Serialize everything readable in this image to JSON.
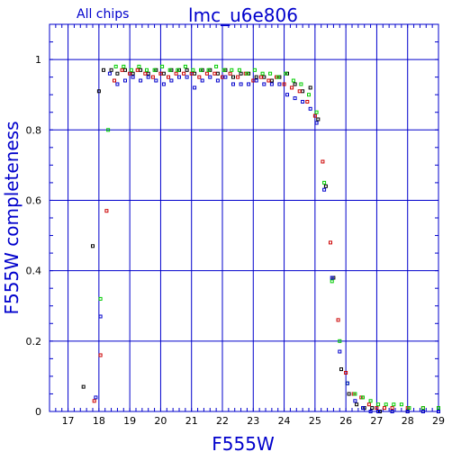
{
  "chart_data": {
    "type": "scatter",
    "title": "lmc_u6e806",
    "subtitle": "All chips",
    "xlabel": "F555W",
    "ylabel": "F555W completeness",
    "xlim": [
      16.4,
      29.0
    ],
    "ylim": [
      0,
      1.1
    ],
    "xticks": [
      17,
      18,
      19,
      20,
      21,
      22,
      23,
      24,
      25,
      26,
      27,
      28,
      29
    ],
    "yticks": [
      0,
      0.2,
      0.4,
      0.6,
      0.8,
      1
    ],
    "ytick_labels": [
      "0",
      "0.2",
      "0.4",
      "0.6",
      "0.8",
      "1"
    ],
    "grid": true,
    "marker": "open-square",
    "series": [
      {
        "color": "#000000",
        "points": [
          [
            17.5,
            0.07
          ],
          [
            17.8,
            0.47
          ],
          [
            18.0,
            0.91
          ],
          [
            18.15,
            0.97
          ],
          [
            18.4,
            0.97
          ],
          [
            18.6,
            0.96
          ],
          [
            18.85,
            0.97
          ],
          [
            19.1,
            0.96
          ],
          [
            19.35,
            0.97
          ],
          [
            19.6,
            0.96
          ],
          [
            19.85,
            0.97
          ],
          [
            20.1,
            0.96
          ],
          [
            20.35,
            0.97
          ],
          [
            20.6,
            0.97
          ],
          [
            20.85,
            0.97
          ],
          [
            21.1,
            0.96
          ],
          [
            21.35,
            0.97
          ],
          [
            21.6,
            0.97
          ],
          [
            21.85,
            0.96
          ],
          [
            22.1,
            0.97
          ],
          [
            22.35,
            0.95
          ],
          [
            22.6,
            0.96
          ],
          [
            22.85,
            0.96
          ],
          [
            23.1,
            0.95
          ],
          [
            23.35,
            0.95
          ],
          [
            23.6,
            0.94
          ],
          [
            23.85,
            0.95
          ],
          [
            24.1,
            0.96
          ],
          [
            24.35,
            0.93
          ],
          [
            24.6,
            0.91
          ],
          [
            24.85,
            0.92
          ],
          [
            25.1,
            0.83
          ],
          [
            25.35,
            0.64
          ],
          [
            25.6,
            0.38
          ],
          [
            25.85,
            0.12
          ],
          [
            26.1,
            0.05
          ],
          [
            26.35,
            0.02
          ],
          [
            26.6,
            0.01
          ],
          [
            26.85,
            0.01
          ],
          [
            27.1,
            0.0
          ],
          [
            27.5,
            0.0
          ],
          [
            28.0,
            0.0
          ],
          [
            28.5,
            0.0
          ],
          [
            29.0,
            0.0
          ]
        ]
      },
      {
        "color": "#cc0000",
        "points": [
          [
            17.85,
            0.03
          ],
          [
            18.05,
            0.16
          ],
          [
            18.25,
            0.57
          ],
          [
            18.5,
            0.94
          ],
          [
            18.75,
            0.97
          ],
          [
            19.0,
            0.96
          ],
          [
            19.25,
            0.97
          ],
          [
            19.5,
            0.96
          ],
          [
            19.75,
            0.95
          ],
          [
            20.0,
            0.96
          ],
          [
            20.25,
            0.95
          ],
          [
            20.5,
            0.96
          ],
          [
            20.75,
            0.96
          ],
          [
            21.0,
            0.96
          ],
          [
            21.25,
            0.95
          ],
          [
            21.5,
            0.96
          ],
          [
            21.75,
            0.96
          ],
          [
            22.0,
            0.95
          ],
          [
            22.25,
            0.96
          ],
          [
            22.5,
            0.95
          ],
          [
            22.75,
            0.96
          ],
          [
            23.0,
            0.94
          ],
          [
            23.25,
            0.95
          ],
          [
            23.5,
            0.94
          ],
          [
            23.75,
            0.95
          ],
          [
            24.0,
            0.93
          ],
          [
            24.25,
            0.92
          ],
          [
            24.5,
            0.91
          ],
          [
            24.75,
            0.88
          ],
          [
            25.0,
            0.84
          ],
          [
            25.25,
            0.71
          ],
          [
            25.5,
            0.48
          ],
          [
            25.75,
            0.26
          ],
          [
            26.0,
            0.11
          ],
          [
            26.25,
            0.05
          ],
          [
            26.5,
            0.04
          ],
          [
            26.75,
            0.02
          ],
          [
            27.0,
            0.01
          ],
          [
            27.25,
            0.01
          ],
          [
            27.5,
            0.01
          ],
          [
            28.0,
            0.01
          ],
          [
            28.5,
            0.01
          ],
          [
            29.0,
            0.01
          ]
        ]
      },
      {
        "color": "#00cc00",
        "points": [
          [
            18.05,
            0.32
          ],
          [
            18.3,
            0.8
          ],
          [
            18.55,
            0.98
          ],
          [
            18.8,
            0.98
          ],
          [
            19.05,
            0.97
          ],
          [
            19.3,
            0.98
          ],
          [
            19.55,
            0.97
          ],
          [
            19.8,
            0.97
          ],
          [
            20.05,
            0.98
          ],
          [
            20.3,
            0.97
          ],
          [
            20.55,
            0.97
          ],
          [
            20.8,
            0.98
          ],
          [
            21.05,
            0.97
          ],
          [
            21.3,
            0.97
          ],
          [
            21.55,
            0.97
          ],
          [
            21.8,
            0.98
          ],
          [
            22.05,
            0.97
          ],
          [
            22.3,
            0.97
          ],
          [
            22.55,
            0.97
          ],
          [
            22.8,
            0.96
          ],
          [
            23.05,
            0.97
          ],
          [
            23.3,
            0.96
          ],
          [
            23.55,
            0.96
          ],
          [
            23.8,
            0.95
          ],
          [
            24.05,
            0.96
          ],
          [
            24.3,
            0.94
          ],
          [
            24.55,
            0.93
          ],
          [
            24.8,
            0.9
          ],
          [
            25.05,
            0.85
          ],
          [
            25.3,
            0.65
          ],
          [
            25.55,
            0.37
          ],
          [
            25.8,
            0.2
          ],
          [
            26.05,
            0.08
          ],
          [
            26.3,
            0.05
          ],
          [
            26.55,
            0.04
          ],
          [
            26.8,
            0.03
          ],
          [
            27.05,
            0.02
          ],
          [
            27.3,
            0.02
          ],
          [
            27.55,
            0.02
          ],
          [
            27.8,
            0.02
          ],
          [
            28.05,
            0.01
          ],
          [
            28.5,
            0.01
          ],
          [
            29.0,
            0.01
          ]
        ]
      },
      {
        "color": "#0000cc",
        "points": [
          [
            17.9,
            0.04
          ],
          [
            18.05,
            0.27
          ],
          [
            18.35,
            0.96
          ],
          [
            18.6,
            0.93
          ],
          [
            18.85,
            0.94
          ],
          [
            19.1,
            0.95
          ],
          [
            19.35,
            0.94
          ],
          [
            19.6,
            0.95
          ],
          [
            19.85,
            0.94
          ],
          [
            20.1,
            0.93
          ],
          [
            20.35,
            0.94
          ],
          [
            20.6,
            0.95
          ],
          [
            20.85,
            0.95
          ],
          [
            21.1,
            0.92
          ],
          [
            21.35,
            0.94
          ],
          [
            21.6,
            0.95
          ],
          [
            21.85,
            0.94
          ],
          [
            22.1,
            0.95
          ],
          [
            22.35,
            0.93
          ],
          [
            22.6,
            0.93
          ],
          [
            22.85,
            0.93
          ],
          [
            23.1,
            0.94
          ],
          [
            23.35,
            0.93
          ],
          [
            23.6,
            0.93
          ],
          [
            23.85,
            0.93
          ],
          [
            24.1,
            0.9
          ],
          [
            24.35,
            0.89
          ],
          [
            24.6,
            0.88
          ],
          [
            24.85,
            0.86
          ],
          [
            25.05,
            0.82
          ],
          [
            25.3,
            0.63
          ],
          [
            25.55,
            0.38
          ],
          [
            25.8,
            0.17
          ],
          [
            26.05,
            0.08
          ],
          [
            26.3,
            0.03
          ],
          [
            26.55,
            0.01
          ],
          [
            26.8,
            0.0
          ],
          [
            27.05,
            0.0
          ],
          [
            27.5,
            0.0
          ],
          [
            28.0,
            0.0
          ],
          [
            28.5,
            0.0
          ],
          [
            29.0,
            0.0
          ]
        ]
      }
    ]
  }
}
